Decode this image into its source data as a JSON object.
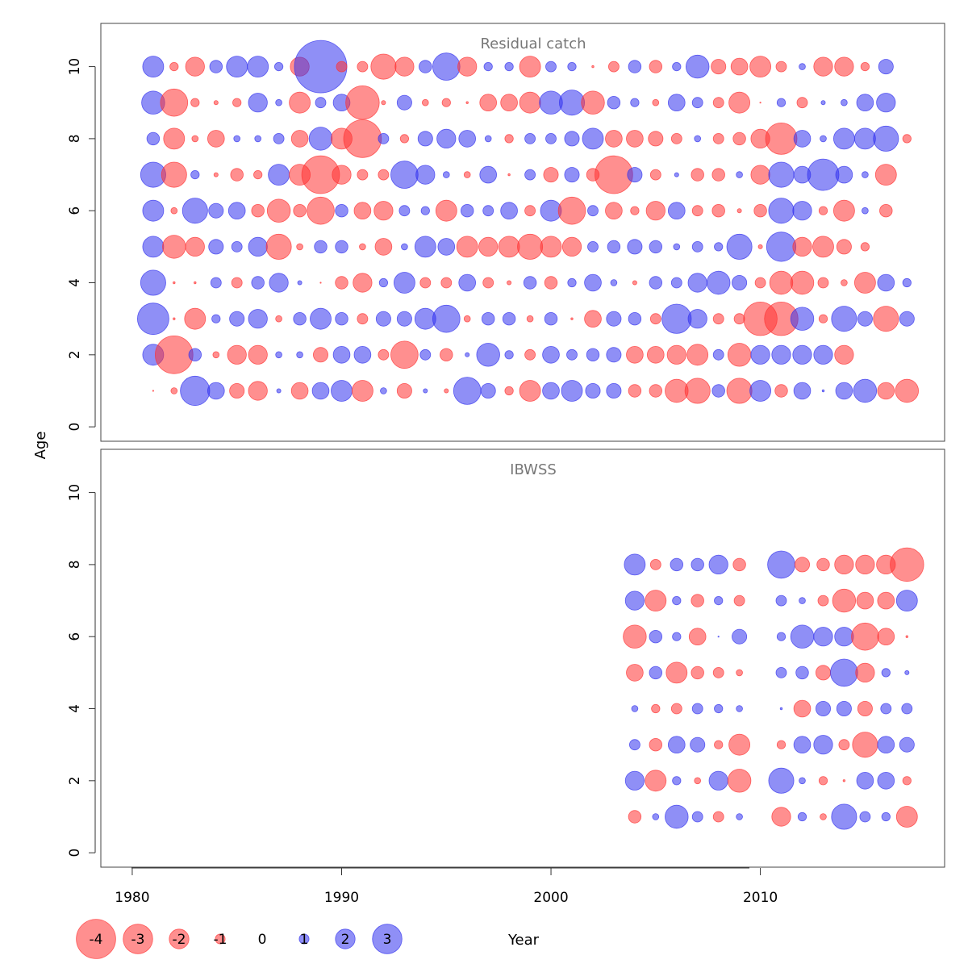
{
  "figure": {
    "ylabel": "Age",
    "xlabel": "Year",
    "legend_values": [
      "-4",
      "-3",
      "-2",
      "-1",
      "0",
      "1",
      "2",
      "3"
    ]
  },
  "colors": {
    "positive": "#3333ee",
    "negative": "#ff3333",
    "panel_title": "#777777",
    "axis": "#333333"
  },
  "chart_data": [
    {
      "type": "scatter",
      "encoding": "bubble; radius proportional to |residual|; blue = positive, red = negative",
      "title": "Residual catch",
      "xlabel": "Year",
      "ylabel": "Age",
      "xlim": [
        1978.5,
        2018.8
      ],
      "ylim": [
        -0.4,
        11.2
      ],
      "xticks": [
        1980,
        1990,
        2000,
        2010
      ],
      "yticks": [
        0,
        2,
        4,
        6,
        8,
        10
      ],
      "ages": [
        1,
        2,
        3,
        4,
        5,
        6,
        7,
        8,
        9,
        10
      ],
      "year_start": 1981,
      "residuals": {
        "10": [
          1.0,
          -0.4,
          -0.9,
          0.6,
          1.0,
          1.0,
          0.4,
          -0.9,
          2.5,
          -0.5,
          -0.5,
          -1.2,
          -0.9,
          0.6,
          1.3,
          -0.9,
          0.4,
          0.4,
          -1.0,
          0.5,
          0.4,
          -0.1,
          -0.5,
          0.6,
          -0.6,
          0.4,
          1.1,
          -0.7,
          -0.8,
          -1.0,
          -0.5,
          0.3,
          -0.9,
          -0.9,
          -0.4,
          0.7
        ],
        "9": [
          1.1,
          -1.3,
          -0.4,
          -0.2,
          -0.4,
          0.9,
          0.3,
          -1.0,
          0.5,
          0.8,
          -1.6,
          -0.2,
          0.7,
          -0.3,
          -0.4,
          -0.1,
          -0.8,
          -0.8,
          -1.0,
          1.1,
          1.2,
          -1.1,
          0.6,
          0.4,
          -0.3,
          0.8,
          0.5,
          -0.5,
          -1.0,
          -0.05,
          0.4,
          -0.5,
          0.2,
          0.3,
          0.8,
          0.9
        ],
        "8": [
          0.6,
          -1.0,
          -0.3,
          -0.8,
          0.3,
          0.3,
          0.5,
          -0.8,
          1.1,
          -1.0,
          -1.8,
          0.5,
          -0.4,
          0.7,
          0.9,
          0.8,
          0.3,
          -0.4,
          0.5,
          0.5,
          0.7,
          1.0,
          -0.8,
          -0.8,
          -0.7,
          -0.5,
          0.3,
          -0.5,
          -0.6,
          -0.9,
          -1.5,
          0.8,
          0.3,
          1.0,
          1.0,
          1.2,
          -0.4
        ],
        "7": [
          1.2,
          -1.2,
          0.4,
          -0.2,
          -0.6,
          -0.4,
          1.0,
          -1.0,
          -1.8,
          -0.9,
          -0.5,
          -0.5,
          1.3,
          0.9,
          0.3,
          -0.3,
          0.8,
          -0.1,
          0.5,
          -0.7,
          0.7,
          -0.6,
          -1.8,
          0.7,
          -0.5,
          0.2,
          -0.6,
          -0.6,
          0.3,
          -0.9,
          1.2,
          0.8,
          1.5,
          0.8,
          0.3,
          -1.0
        ],
        "6": [
          1.0,
          -0.3,
          1.2,
          0.7,
          0.8,
          -0.6,
          -1.1,
          -0.6,
          -1.3,
          0.6,
          -0.8,
          -0.9,
          0.5,
          0.4,
          -1.0,
          0.6,
          0.5,
          0.8,
          -0.5,
          1.0,
          -1.3,
          0.5,
          -0.8,
          -0.4,
          -0.9,
          0.8,
          -0.5,
          -0.6,
          -0.2,
          -0.6,
          1.2,
          0.9,
          -0.4,
          -1.0,
          0.3,
          -0.6
        ],
        "5": [
          1.0,
          -1.1,
          -0.9,
          0.7,
          0.5,
          0.9,
          -1.2,
          -0.3,
          0.6,
          0.6,
          -0.3,
          -0.8,
          0.3,
          1.0,
          0.8,
          -1.0,
          -0.9,
          -1.0,
          -1.2,
          -1.0,
          -0.9,
          0.5,
          0.6,
          0.7,
          0.6,
          0.3,
          0.5,
          0.4,
          1.2,
          -0.2,
          1.4,
          -0.9,
          -1.0,
          -0.7,
          -0.4
        ],
        "4": [
          1.2,
          -0.1,
          -0.1,
          0.5,
          -0.5,
          0.6,
          0.9,
          0.2,
          -0.05,
          -0.6,
          -0.9,
          0.4,
          1.0,
          -0.5,
          -0.5,
          0.8,
          -0.5,
          -0.2,
          0.6,
          -0.6,
          0.4,
          0.8,
          0.3,
          -0.2,
          0.6,
          0.5,
          0.9,
          1.1,
          0.7,
          -0.5,
          -1.1,
          -1.1,
          -0.5,
          -0.3,
          -1.0,
          0.8,
          0.4
        ],
        "3": [
          1.5,
          -0.1,
          -1.0,
          0.4,
          0.7,
          0.9,
          -0.3,
          0.6,
          1.0,
          0.6,
          -0.5,
          0.7,
          0.7,
          1.0,
          1.3,
          -0.3,
          0.6,
          0.6,
          -0.3,
          0.6,
          -0.1,
          -0.8,
          0.7,
          0.6,
          -0.5,
          1.4,
          0.9,
          -0.5,
          -0.5,
          -1.6,
          -1.6,
          1.1,
          -0.4,
          1.2,
          0.7,
          -1.2,
          0.7
        ],
        "2": [
          1.0,
          -1.8,
          0.6,
          -0.3,
          -0.9,
          -0.9,
          0.3,
          0.3,
          -0.7,
          0.8,
          0.8,
          -0.5,
          -1.3,
          0.5,
          -0.6,
          0.2,
          1.1,
          0.4,
          -0.5,
          0.8,
          0.5,
          0.6,
          0.7,
          -0.8,
          -0.8,
          -0.9,
          -1.0,
          0.5,
          -1.1,
          0.9,
          0.9,
          0.9,
          0.9,
          -0.9
        ],
        "1": [
          -0.05,
          -0.3,
          1.4,
          0.8,
          -0.7,
          -0.9,
          0.2,
          -0.8,
          0.8,
          1.0,
          -1.0,
          0.3,
          -0.7,
          0.2,
          -0.2,
          1.3,
          0.7,
          -0.4,
          -1.0,
          0.8,
          1.0,
          0.7,
          0.7,
          -0.6,
          -0.6,
          -1.1,
          -1.2,
          0.6,
          -1.2,
          1.0,
          -0.6,
          0.8,
          0.1,
          0.8,
          1.1,
          -0.8,
          -1.1
        ]
      }
    },
    {
      "type": "scatter",
      "encoding": "bubble; radius proportional to |residual|; blue = positive, red = negative",
      "title": "IBWSS",
      "xlabel": "Year",
      "ylabel": "Age",
      "xlim": [
        1978.5,
        2018.8
      ],
      "ylim": [
        -0.4,
        11.2
      ],
      "xticks": [
        1980,
        1990,
        2000,
        2010
      ],
      "yticks": [
        0,
        2,
        4,
        6,
        8,
        10
      ],
      "ages": [
        1,
        2,
        3,
        4,
        5,
        6,
        7,
        8
      ],
      "years": [
        2004,
        2005,
        2006,
        2007,
        2008,
        2009,
        2011,
        2012,
        2013,
        2014,
        2015,
        2016,
        2017
      ],
      "residuals": {
        "8": [
          1.0,
          -0.5,
          0.6,
          0.6,
          0.9,
          -0.6,
          1.3,
          -0.7,
          -0.6,
          -0.9,
          -0.9,
          -0.9,
          -1.6
        ],
        "7": [
          0.9,
          -1.0,
          0.4,
          -0.6,
          0.4,
          -0.5,
          0.5,
          0.3,
          -0.5,
          -1.1,
          -0.8,
          -0.8,
          1.0
        ],
        "6": [
          -1.1,
          0.6,
          0.4,
          -0.8,
          0.05,
          0.7,
          0.4,
          1.1,
          0.9,
          0.9,
          -1.3,
          -0.8,
          -0.1
        ],
        "5": [
          -0.8,
          0.6,
          -1.0,
          -0.6,
          -0.5,
          -0.3,
          0.5,
          0.6,
          -0.7,
          1.3,
          -0.9,
          0.4,
          0.2
        ],
        "4": [
          0.3,
          -0.4,
          -0.5,
          0.5,
          0.4,
          0.3,
          0.1,
          -0.8,
          0.7,
          0.7,
          -0.7,
          0.5,
          0.5
        ],
        "3": [
          0.5,
          -0.6,
          0.8,
          0.7,
          -0.4,
          -1.0,
          -0.4,
          0.8,
          0.9,
          -0.5,
          -1.2,
          0.8,
          0.7
        ],
        "2": [
          0.9,
          -1.0,
          0.4,
          -0.3,
          0.9,
          -1.1,
          1.2,
          0.3,
          -0.4,
          -0.1,
          0.8,
          0.8,
          -0.4
        ],
        "1": [
          -0.6,
          0.3,
          1.1,
          0.5,
          -0.5,
          0.3,
          -0.9,
          0.4,
          -0.3,
          1.2,
          0.5,
          0.4,
          -1.0
        ]
      }
    }
  ]
}
